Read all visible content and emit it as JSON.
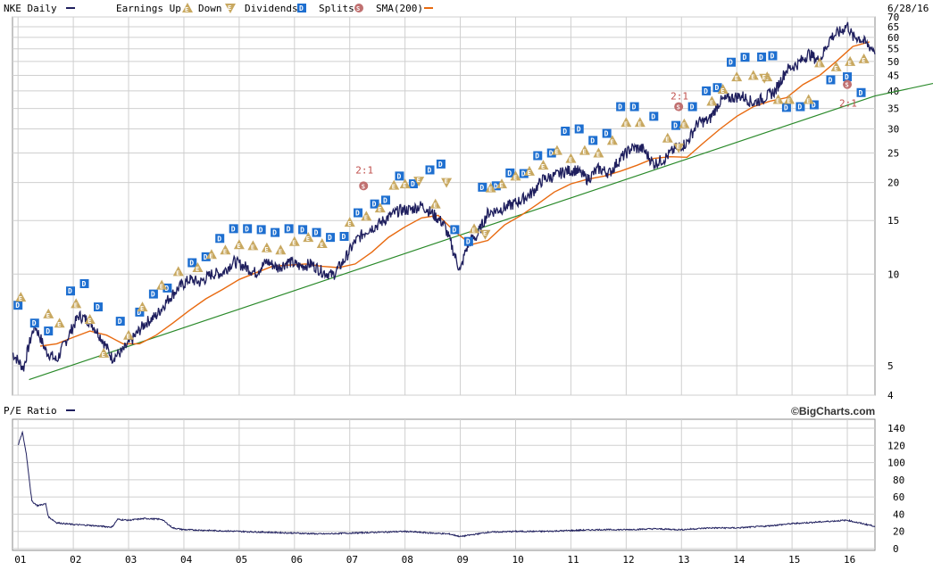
{
  "header": {
    "symbol_label": "NKE Daily",
    "legend_earnings_up": "Earnings Up",
    "legend_down": "Down",
    "legend_dividends": "Dividends",
    "legend_splits": "Splits",
    "legend_sma": "SMA(200)",
    "date": "6/28/16"
  },
  "lower_panel": {
    "title": "P/E Ratio",
    "brand": "©BigCharts.com"
  },
  "colors": {
    "price": "#1f1f5e",
    "sma": "#e86a10",
    "trendline": "#2a8a2a",
    "grid": "#cfcfcf",
    "earnings_badge": "#c8a860",
    "dividend_badge": "#1e6fd0",
    "split_badge": "#c07070"
  },
  "chart_data": [
    {
      "type": "line",
      "title": "NKE Daily",
      "scale": "log",
      "ylim": [
        4,
        70
      ],
      "y_ticks": [
        4,
        5,
        10,
        15,
        20,
        25,
        30,
        35,
        40,
        45,
        50,
        55,
        60,
        65,
        70
      ],
      "x_labels": [
        "01",
        "02",
        "03",
        "04",
        "05",
        "06",
        "07",
        "08",
        "09",
        "10",
        "11",
        "12",
        "13",
        "14",
        "15",
        "16"
      ],
      "x_range": [
        2000.9,
        2016.5
      ],
      "grid": true,
      "series": [
        {
          "name": "NKE Daily",
          "x": [
            2000.9,
            2001.1,
            2001.3,
            2001.5,
            2001.7,
            2001.9,
            2002.1,
            2002.3,
            2002.5,
            2002.7,
            2002.9,
            2003.1,
            2003.3,
            2003.5,
            2003.7,
            2003.9,
            2004.1,
            2004.3,
            2004.5,
            2004.7,
            2004.9,
            2005.1,
            2005.3,
            2005.5,
            2005.7,
            2005.9,
            2006.1,
            2006.3,
            2006.5,
            2006.7,
            2006.9,
            2007.1,
            2007.3,
            2007.5,
            2007.7,
            2007.9,
            2008.1,
            2008.3,
            2008.5,
            2008.7,
            2008.9,
            2009.0,
            2009.1,
            2009.2,
            2009.3,
            2009.5,
            2009.7,
            2009.9,
            2010.1,
            2010.3,
            2010.5,
            2010.7,
            2010.9,
            2011.1,
            2011.3,
            2011.5,
            2011.7,
            2011.9,
            2012.1,
            2012.3,
            2012.5,
            2012.7,
            2012.9,
            2013.1,
            2013.3,
            2013.5,
            2013.7,
            2013.9,
            2014.1,
            2014.3,
            2014.5,
            2014.7,
            2014.9,
            2015.1,
            2015.3,
            2015.5,
            2015.7,
            2015.9,
            2016.0,
            2016.1,
            2016.2,
            2016.3,
            2016.4,
            2016.5
          ],
          "values": [
            5.5,
            4.9,
            6.8,
            5.6,
            5.2,
            6.2,
            7.3,
            7.0,
            6.2,
            5.3,
            5.6,
            6.2,
            6.9,
            7.3,
            8.2,
            9.0,
            9.6,
            9.4,
            10.0,
            10.1,
            11.0,
            10.6,
            10.1,
            11.0,
            10.5,
            11.0,
            10.6,
            10.8,
            10.2,
            9.9,
            11.1,
            12.8,
            13.9,
            14.5,
            15.4,
            16.2,
            16.3,
            16.8,
            15.8,
            14.6,
            11.5,
            10.2,
            12.0,
            13.0,
            13.3,
            15.9,
            16.3,
            16.8,
            17.5,
            18.5,
            20.5,
            21.0,
            21.8,
            22.0,
            20.5,
            22.2,
            21.5,
            24.0,
            26.0,
            25.8,
            23.0,
            24.0,
            26.0,
            27.0,
            31.5,
            32.0,
            37.0,
            38.0,
            38.5,
            36.5,
            38.0,
            40.0,
            47.0,
            49.0,
            53.0,
            50.0,
            60.0,
            63.0,
            66.0,
            60.0,
            60.0,
            58.0,
            56.0,
            54.5
          ]
        },
        {
          "name": "SMA(200)",
          "x": [
            2001.4,
            2001.7,
            2002.0,
            2002.3,
            2002.6,
            2002.9,
            2003.2,
            2003.5,
            2003.8,
            2004.1,
            2004.4,
            2004.7,
            2005.0,
            2005.3,
            2005.6,
            2005.9,
            2006.2,
            2006.5,
            2006.8,
            2007.1,
            2007.4,
            2007.7,
            2008.0,
            2008.3,
            2008.6,
            2008.9,
            2009.2,
            2009.5,
            2009.8,
            2010.1,
            2010.4,
            2010.7,
            2011.0,
            2011.3,
            2011.6,
            2011.9,
            2012.2,
            2012.5,
            2012.8,
            2013.1,
            2013.4,
            2013.7,
            2014.0,
            2014.3,
            2014.6,
            2014.9,
            2015.2,
            2015.5,
            2015.8,
            2016.1,
            2016.4
          ],
          "values": [
            5.8,
            5.9,
            6.2,
            6.5,
            6.3,
            5.9,
            5.9,
            6.3,
            6.9,
            7.6,
            8.3,
            8.9,
            9.6,
            10.1,
            10.6,
            10.7,
            10.8,
            10.6,
            10.5,
            10.8,
            11.8,
            13.2,
            14.3,
            15.3,
            15.6,
            13.8,
            12.5,
            12.9,
            14.5,
            15.6,
            17.0,
            18.6,
            19.8,
            20.5,
            21.0,
            21.8,
            22.8,
            24.0,
            24.3,
            24.2,
            27.0,
            30.0,
            33.0,
            35.5,
            37.0,
            38.0,
            42.0,
            45.0,
            50.0,
            56.0,
            58.0
          ]
        },
        {
          "name": "trend",
          "x": [
            2001.2,
            2016.5
          ],
          "values": [
            4.5,
            38.5
          ]
        }
      ]
    },
    {
      "type": "line",
      "title": "P/E Ratio",
      "ylim": [
        0,
        140
      ],
      "y_ticks": [
        0,
        20,
        40,
        60,
        80,
        100,
        120,
        140
      ],
      "x_labels": [
        "01",
        "02",
        "03",
        "04",
        "05",
        "06",
        "07",
        "08",
        "09",
        "10",
        "11",
        "12",
        "13",
        "14",
        "15",
        "16"
      ],
      "x_range": [
        2000.9,
        2016.5
      ],
      "grid": true,
      "series": [
        {
          "name": "P/E Ratio",
          "x": [
            2001.0,
            2001.08,
            2001.15,
            2001.25,
            2001.35,
            2001.5,
            2001.55,
            2001.7,
            2002.0,
            2002.3,
            2002.5,
            2002.7,
            2002.8,
            2003.0,
            2003.3,
            2003.6,
            2003.8,
            2004.0,
            2004.5,
            2005.0,
            2005.5,
            2006.0,
            2006.5,
            2007.0,
            2007.5,
            2008.0,
            2008.5,
            2008.8,
            2009.0,
            2009.2,
            2009.5,
            2010.0,
            2010.5,
            2011.0,
            2011.5,
            2012.0,
            2012.5,
            2013.0,
            2013.5,
            2014.0,
            2014.5,
            2015.0,
            2015.5,
            2016.0,
            2016.2,
            2016.5
          ],
          "values": [
            120,
            135,
            110,
            55,
            50,
            52,
            37,
            30,
            28,
            27,
            26,
            25,
            34,
            33,
            35,
            34,
            24,
            22,
            21,
            20,
            19,
            18,
            17,
            18,
            19,
            20,
            18,
            17,
            14,
            16,
            19,
            20,
            20,
            21,
            22,
            22,
            23,
            22,
            24,
            24,
            26,
            29,
            31,
            33,
            30,
            26
          ]
        }
      ]
    }
  ],
  "markers": {
    "split_label": "2:1",
    "earnings_up_glyph": "E",
    "dividend_glyph": "D",
    "split_glyph": "S",
    "dividends": [
      [
        2001.0,
        7.9
      ],
      [
        2001.3,
        6.9
      ],
      [
        2001.55,
        6.5
      ],
      [
        2001.95,
        8.8
      ],
      [
        2002.2,
        9.3
      ],
      [
        2002.45,
        7.8
      ],
      [
        2002.85,
        7.0
      ],
      [
        2003.2,
        7.5
      ],
      [
        2003.45,
        8.6
      ],
      [
        2003.7,
        9.0
      ],
      [
        2004.15,
        10.9
      ],
      [
        2004.4,
        11.4
      ],
      [
        2004.65,
        13.1
      ],
      [
        2004.9,
        14.1
      ],
      [
        2005.15,
        14.1
      ],
      [
        2005.4,
        14.0
      ],
      [
        2005.65,
        13.7
      ],
      [
        2005.9,
        14.1
      ],
      [
        2006.15,
        14.0
      ],
      [
        2006.4,
        13.7
      ],
      [
        2006.65,
        13.2
      ],
      [
        2006.9,
        13.3
      ],
      [
        2007.15,
        15.9
      ],
      [
        2007.45,
        17.0
      ],
      [
        2007.65,
        17.5
      ],
      [
        2007.9,
        21.0
      ],
      [
        2008.15,
        19.8
      ],
      [
        2008.45,
        22.0
      ],
      [
        2008.65,
        23.0
      ],
      [
        2008.9,
        14.0
      ],
      [
        2009.15,
        12.8
      ],
      [
        2009.4,
        19.3
      ],
      [
        2009.65,
        19.5
      ],
      [
        2009.9,
        21.5
      ],
      [
        2010.15,
        21.4
      ],
      [
        2010.4,
        24.5
      ],
      [
        2010.65,
        25.0
      ],
      [
        2010.9,
        29.5
      ],
      [
        2011.15,
        30.0
      ],
      [
        2011.4,
        27.5
      ],
      [
        2011.65,
        29.0
      ],
      [
        2011.9,
        35.5
      ],
      [
        2012.15,
        35.5
      ],
      [
        2012.5,
        33.0
      ],
      [
        2012.9,
        30.8
      ],
      [
        2013.2,
        35.5
      ],
      [
        2013.45,
        40.0
      ],
      [
        2013.65,
        41.0
      ],
      [
        2013.9,
        49.7
      ],
      [
        2014.15,
        51.6
      ],
      [
        2014.45,
        51.7
      ],
      [
        2014.65,
        52.2
      ],
      [
        2014.9,
        35.3
      ],
      [
        2015.15,
        35.5
      ],
      [
        2015.4,
        36.0
      ],
      [
        2015.7,
        43.5
      ],
      [
        2016.0,
        44.5
      ],
      [
        2016.25,
        39.5
      ]
    ],
    "earnings_up": [
      [
        2001.05,
        8.4
      ],
      [
        2001.55,
        7.4
      ],
      [
        2001.75,
        6.9
      ],
      [
        2002.05,
        8.0
      ],
      [
        2002.3,
        7.1
      ],
      [
        2002.55,
        5.5
      ],
      [
        2003.0,
        6.3
      ],
      [
        2003.25,
        7.8
      ],
      [
        2003.6,
        9.2
      ],
      [
        2003.9,
        10.2
      ],
      [
        2004.25,
        10.5
      ],
      [
        2004.5,
        11.6
      ],
      [
        2004.75,
        12.0
      ],
      [
        2005.0,
        12.5
      ],
      [
        2005.25,
        12.4
      ],
      [
        2005.5,
        12.2
      ],
      [
        2005.75,
        12.0
      ],
      [
        2006.0,
        12.8
      ],
      [
        2006.25,
        13.2
      ],
      [
        2006.5,
        12.6
      ],
      [
        2007.0,
        14.8
      ],
      [
        2007.3,
        15.5
      ],
      [
        2007.55,
        16.5
      ],
      [
        2007.8,
        19.6
      ],
      [
        2008.0,
        19.8
      ],
      [
        2008.55,
        17.0
      ],
      [
        2009.25,
        14.1
      ],
      [
        2009.55,
        19.2
      ],
      [
        2009.75,
        19.8
      ],
      [
        2010.0,
        21.0
      ],
      [
        2010.25,
        21.8
      ],
      [
        2010.5,
        22.8
      ],
      [
        2010.75,
        25.5
      ],
      [
        2011.0,
        24.0
      ],
      [
        2011.25,
        25.5
      ],
      [
        2011.5,
        25.0
      ],
      [
        2011.75,
        27.5
      ],
      [
        2012.0,
        31.5
      ],
      [
        2012.25,
        31.5
      ],
      [
        2012.75,
        28.0
      ],
      [
        2013.05,
        31.2
      ],
      [
        2013.55,
        37.0
      ],
      [
        2013.75,
        40.5
      ],
      [
        2014.0,
        44.5
      ],
      [
        2014.3,
        45.0
      ],
      [
        2014.55,
        44.5
      ],
      [
        2014.75,
        37.5
      ],
      [
        2014.95,
        37.5
      ],
      [
        2015.3,
        37.5
      ],
      [
        2015.5,
        49.5
      ],
      [
        2015.8,
        48.0
      ],
      [
        2016.05,
        50.0
      ],
      [
        2016.3,
        51.0
      ]
    ],
    "earnings_down": [
      [
        2008.25,
        20.2
      ],
      [
        2008.75,
        20.0
      ],
      [
        2009.45,
        13.5
      ],
      [
        2012.95,
        26.0
      ],
      [
        2014.5,
        44.0
      ]
    ],
    "splits": [
      [
        2007.25,
        19.5
      ],
      [
        2012.95,
        35.5
      ],
      [
        2016.0,
        42.0
      ]
    ],
    "split_labels": [
      [
        2007.25,
        22.0
      ],
      [
        2012.95,
        38.5
      ],
      [
        2016.0,
        36.5
      ]
    ]
  }
}
